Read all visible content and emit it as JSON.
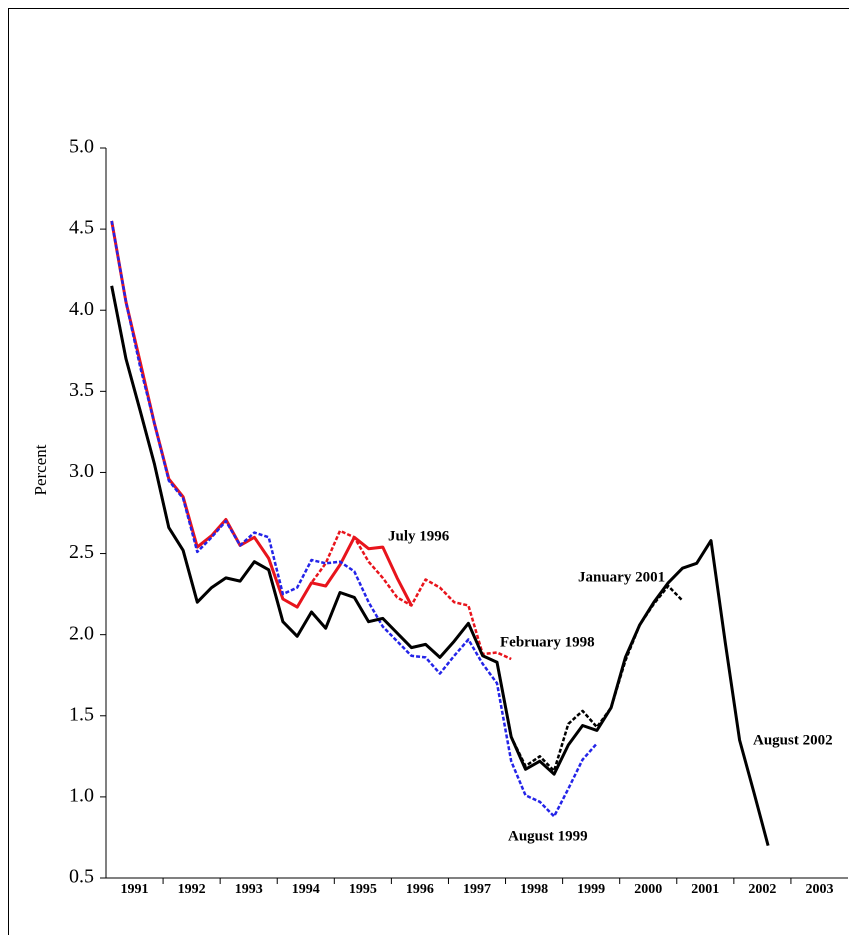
{
  "chart_data": {
    "type": "line",
    "y_label": "Percent",
    "x": [
      1991.1,
      1991.35,
      1991.6,
      1991.85,
      1992.1,
      1992.35,
      1992.6,
      1992.85,
      1993.1,
      1993.35,
      1993.6,
      1993.85,
      1994.1,
      1994.35,
      1994.6,
      1994.85,
      1995.1,
      1995.35,
      1995.6,
      1995.85,
      1996.1,
      1996.35,
      1996.6,
      1996.85,
      1997.1,
      1997.35,
      1997.6,
      1997.85,
      1998.1,
      1998.35,
      1998.6,
      1998.85,
      1999.1,
      1999.35,
      1999.6,
      1999.85,
      2000.1,
      2000.35,
      2000.6,
      2000.85,
      2001.1,
      2001.35,
      2001.6,
      2001.85,
      2002.1,
      2002.35,
      2002.6
    ],
    "xlim": [
      1991,
      2004
    ],
    "xticks": [
      {
        "value": 1991.5,
        "label": "1991"
      },
      {
        "value": 1992.5,
        "label": "1992"
      },
      {
        "value": 1993.5,
        "label": "1993"
      },
      {
        "value": 1994.5,
        "label": "1994"
      },
      {
        "value": 1995.5,
        "label": "1995"
      },
      {
        "value": 1996.5,
        "label": "1996"
      },
      {
        "value": 1997.5,
        "label": "1997"
      },
      {
        "value": 1998.5,
        "label": "1998"
      },
      {
        "value": 1999.5,
        "label": "1999"
      },
      {
        "value": 2000.5,
        "label": "2000"
      },
      {
        "value": 2001.5,
        "label": "2001"
      },
      {
        "value": 2002.5,
        "label": "2002"
      },
      {
        "value": 2003.5,
        "label": "2003"
      }
    ],
    "ylim": [
      0.5,
      5.0
    ],
    "yticks": [
      0.5,
      {
        "value": 1,
        "label": "1.0"
      },
      1.5,
      {
        "value": 2,
        "label": "2.0"
      },
      2.5,
      {
        "value": 3,
        "label": "3.0"
      },
      3.5,
      {
        "value": 4,
        "label": "4.0"
      },
      4.5,
      {
        "value": 5,
        "label": "5.0"
      }
    ],
    "series": [
      {
        "name": "July 1996",
        "color": "#e8141c",
        "dashed": false,
        "values": [
          4.55,
          4.05,
          3.68,
          3.3,
          2.96,
          2.85,
          2.54,
          2.61,
          2.71,
          2.55,
          2.6,
          2.47,
          2.22,
          2.17,
          2.32,
          2.3,
          2.43,
          2.6,
          2.53,
          2.54,
          2.35,
          2.18,
          null,
          null,
          null,
          null,
          null,
          null,
          null,
          null,
          null,
          null,
          null,
          null,
          null,
          null,
          null,
          null,
          null,
          null,
          null,
          null,
          null,
          null,
          null,
          null,
          null
        ]
      },
      {
        "name": "February 1998",
        "color": "#e8141c",
        "dashed": true,
        "values": [
          4.55,
          4.05,
          3.68,
          3.3,
          2.96,
          2.85,
          2.54,
          2.61,
          2.71,
          2.55,
          2.6,
          2.47,
          2.22,
          2.17,
          2.32,
          2.44,
          2.64,
          2.6,
          2.45,
          2.35,
          2.23,
          2.18,
          2.34,
          2.29,
          2.2,
          2.18,
          1.88,
          1.89,
          1.85,
          null,
          null,
          null,
          null,
          null,
          null,
          null,
          null,
          null,
          null,
          null,
          null,
          null,
          null,
          null,
          null,
          null,
          null
        ]
      },
      {
        "name": "August 1999",
        "color": "#2424e8",
        "dashed": true,
        "values": [
          4.55,
          4.05,
          3.65,
          3.3,
          2.95,
          2.84,
          2.51,
          2.6,
          2.7,
          2.55,
          2.63,
          2.6,
          2.25,
          2.29,
          2.46,
          2.44,
          2.45,
          2.39,
          2.2,
          2.05,
          1.96,
          1.87,
          1.86,
          1.76,
          1.87,
          1.97,
          1.82,
          1.7,
          1.22,
          1.01,
          0.97,
          0.88,
          1.05,
          1.23,
          1.33,
          null,
          null,
          null,
          null,
          null,
          null,
          null,
          null,
          null,
          null,
          null,
          null
        ]
      },
      {
        "name": "January 2001",
        "color": "#000000",
        "dashed": true,
        "values": [
          4.15,
          3.7,
          3.38,
          3.05,
          2.66,
          2.52,
          2.2,
          2.29,
          2.35,
          2.33,
          2.45,
          2.4,
          2.08,
          1.99,
          2.14,
          2.04,
          2.26,
          2.23,
          2.08,
          2.1,
          2.01,
          1.92,
          1.94,
          1.86,
          1.96,
          2.07,
          1.87,
          1.83,
          1.37,
          1.19,
          1.25,
          1.16,
          1.45,
          1.53,
          1.43,
          1.55,
          1.84,
          2.06,
          2.19,
          2.3,
          2.21,
          null,
          null,
          null,
          null,
          null,
          null
        ]
      },
      {
        "name": "August 2002",
        "color": "#000000",
        "dashed": false,
        "values": [
          4.15,
          3.7,
          3.38,
          3.05,
          2.66,
          2.52,
          2.2,
          2.29,
          2.35,
          2.33,
          2.45,
          2.4,
          2.08,
          1.99,
          2.14,
          2.04,
          2.26,
          2.23,
          2.08,
          2.1,
          2.01,
          1.92,
          1.94,
          1.86,
          1.96,
          2.07,
          1.87,
          1.83,
          1.37,
          1.17,
          1.22,
          1.14,
          1.32,
          1.44,
          1.41,
          1.55,
          1.86,
          2.06,
          2.2,
          2.32,
          2.41,
          2.44,
          2.58,
          1.95,
          1.35,
          1.03,
          0.7
        ]
      }
    ]
  }
}
